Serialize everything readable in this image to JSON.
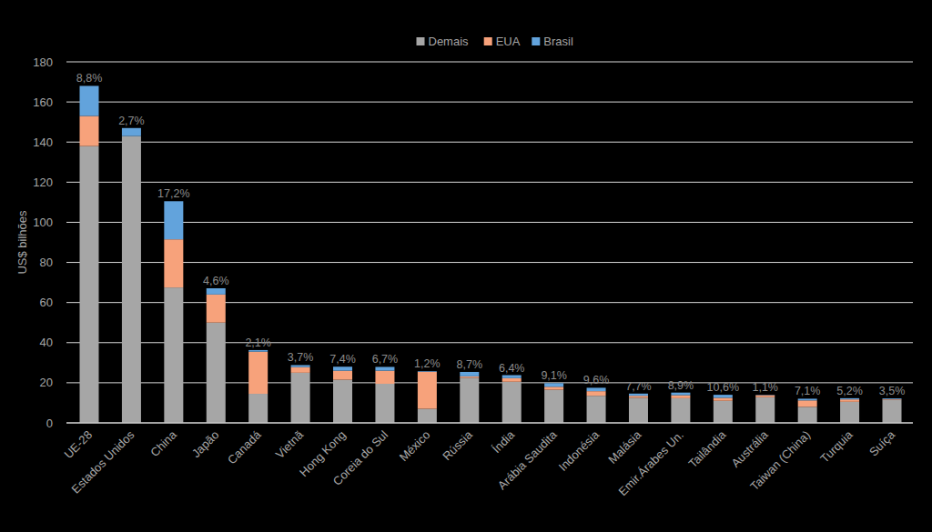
{
  "chart_data": {
    "type": "bar",
    "stacked": true,
    "grid": true,
    "legend": "top",
    "y_label": "US$ bilhões",
    "categories": [
      "UE-28",
      "Estados Unidos",
      "China",
      "Japão",
      "Canadá",
      "Vietnã",
      "Hong Kong",
      "Coreia do Sul",
      "México",
      "Rússia",
      "Índia",
      "Arábia Saudita",
      "Indonésia",
      "Malásia",
      "Emir.Árabes Un.",
      "Tailândia",
      "Austrália",
      "Taiwan (China)",
      "Turquia",
      "Suíça"
    ],
    "series": [
      {
        "name": "Demais",
        "color": "#a6a6a6",
        "values": [
          138,
          143,
          67.5,
          50,
          14.5,
          25,
          21.5,
          19.5,
          7,
          22.5,
          20.5,
          16.5,
          13.5,
          12.5,
          12.3,
          11,
          12.8,
          8,
          10.5,
          11.5
        ]
      },
      {
        "name": "EUA",
        "color": "#f7a27b",
        "values": [
          15,
          0,
          24,
          14,
          21,
          2.8,
          4.5,
          6.5,
          18.5,
          0.7,
          1.8,
          1.5,
          2.3,
          1.0,
          1.5,
          1.5,
          1.0,
          3.2,
          1.2,
          0.3
        ]
      },
      {
        "name": "Brasil",
        "color": "#62a3dc",
        "values": [
          15,
          4,
          19,
          3.1,
          0.8,
          1.0,
          2,
          1.9,
          0.3,
          2.2,
          1.5,
          1.8,
          1.7,
          1.1,
          1.3,
          1.5,
          0.15,
          0.85,
          0.6,
          0.4
        ]
      }
    ],
    "annotations": {
      "values": [
        8.8,
        2.7,
        17.2,
        4.6,
        2.1,
        3.7,
        7.4,
        6.7,
        1.2,
        8.7,
        6.4,
        9.1,
        9.6,
        7.7,
        8.9,
        10.6,
        1.1,
        7.1,
        5.2,
        3.5
      ],
      "labels": [
        "8,8%",
        "2,7%",
        "17,2%",
        "4,6%",
        "2,1%",
        "3,7%",
        "7,4%",
        "6,7%",
        "1,2%",
        "8,7%",
        "6,4%",
        "9,1%",
        "9,6%",
        "7,7%",
        "8,9%",
        "10,6%",
        "1,1%",
        "7,1%",
        "5,2%",
        "3,5%"
      ]
    },
    "ylim": [
      0,
      180
    ],
    "yticks": [
      0,
      20,
      40,
      60,
      80,
      100,
      120,
      140,
      160,
      180
    ]
  }
}
